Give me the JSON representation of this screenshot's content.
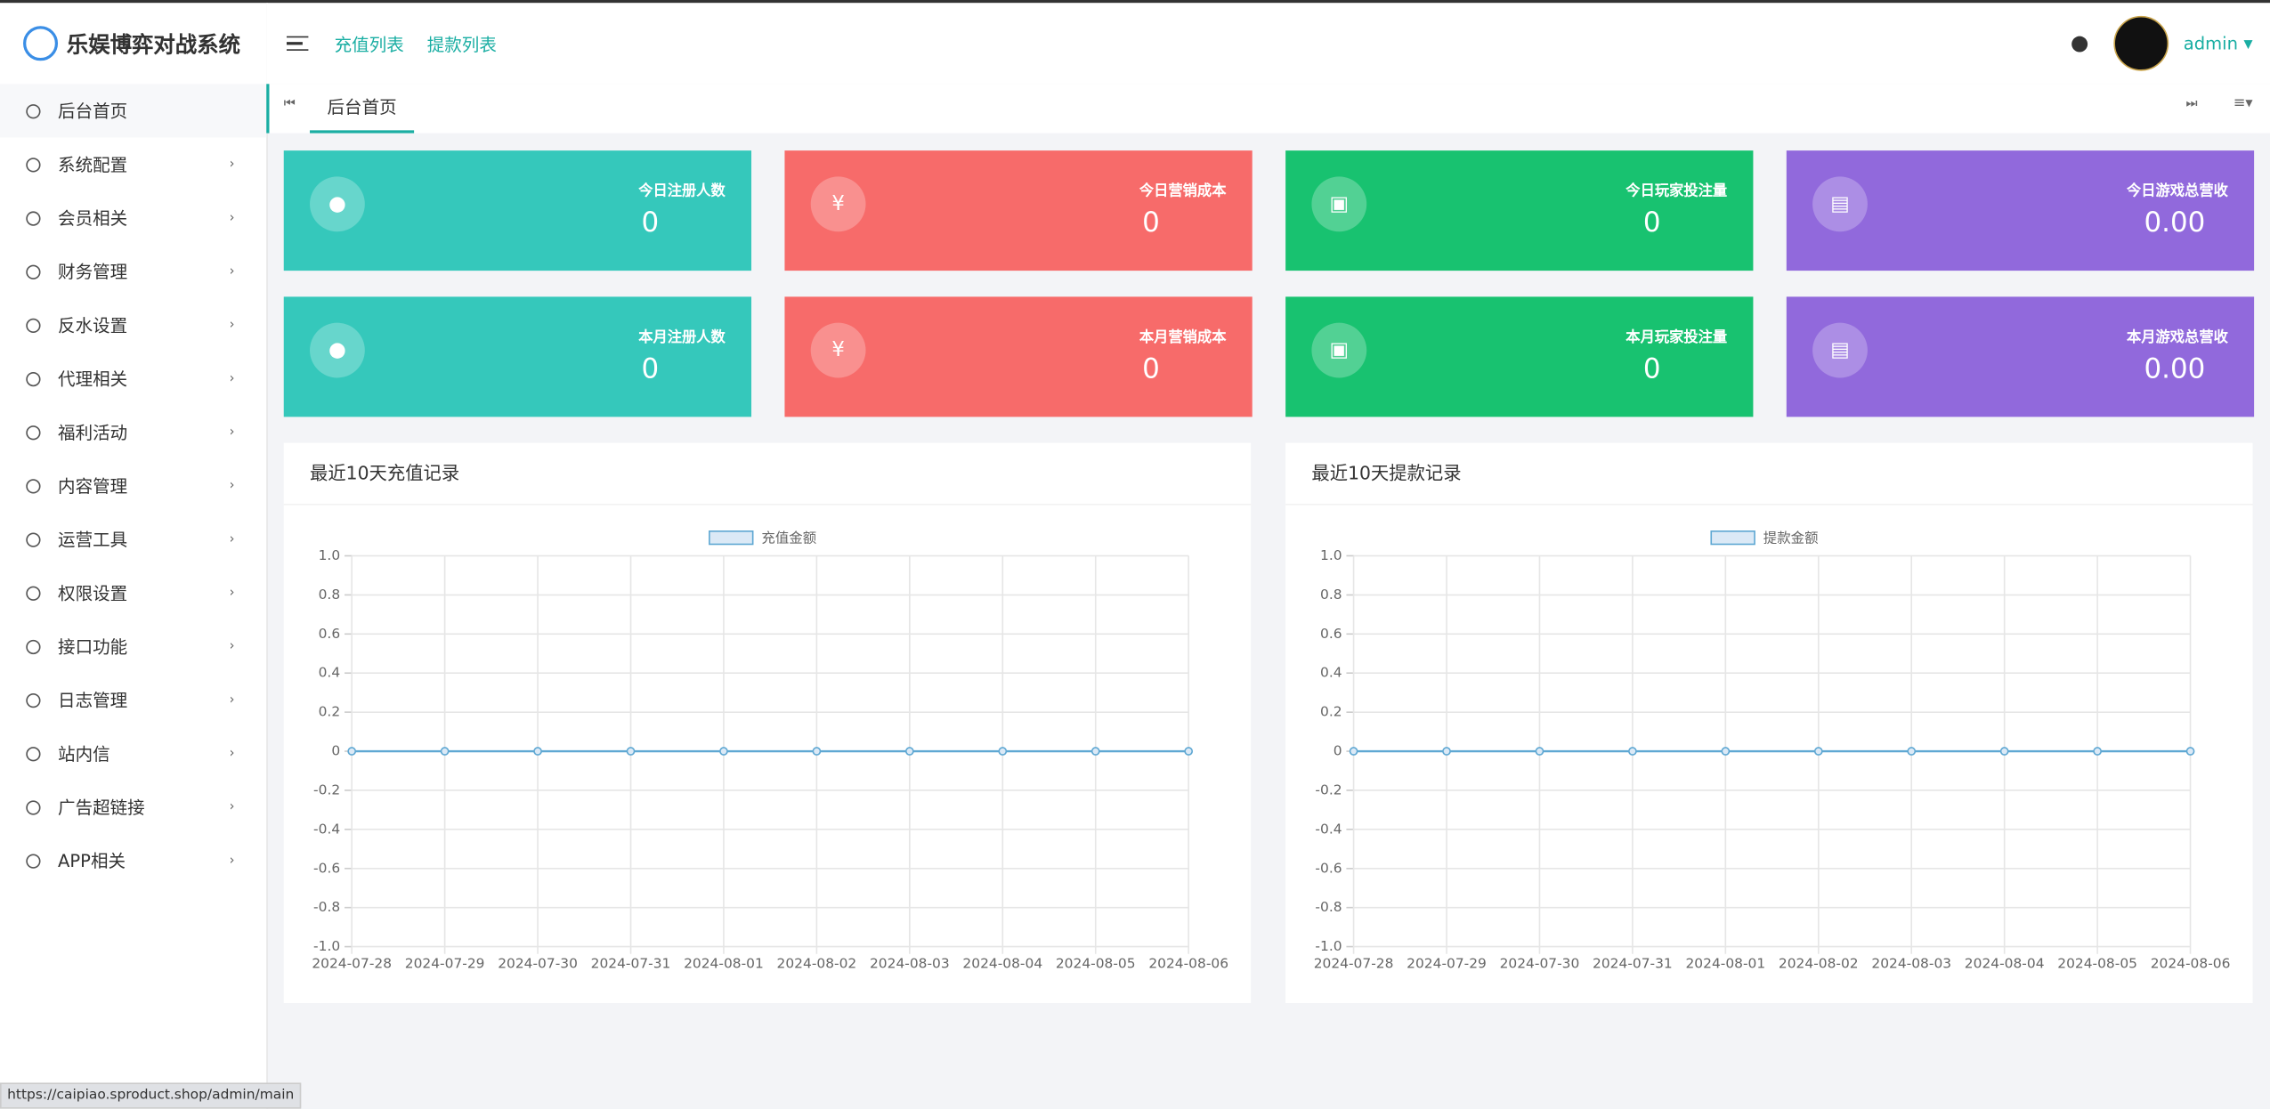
{
  "header": {
    "brand": "乐娱博弈对战系统",
    "nav": [
      "充值列表",
      "提款列表"
    ],
    "user": "admin"
  },
  "sidebar": {
    "menu": [
      "后台首页",
      "系统配置",
      "会员相关",
      "财务管理",
      "反水设置",
      "代理相关",
      "福利活动",
      "内容管理",
      "运营工具",
      "权限设置",
      "接口功能",
      "日志管理",
      "站内信",
      "广告超链接",
      "APP相关"
    ]
  },
  "tabs": [
    "后台首页"
  ],
  "stats": [
    {
      "label": "今日注册人数",
      "value": 0,
      "color": "#35c8bb",
      "icon": "user"
    },
    {
      "label": "今日营销成本",
      "value": 0,
      "color": "#f76b6a",
      "icon": "yen"
    },
    {
      "label": "今日玩家投注量",
      "value": 0,
      "color": "#18c270",
      "icon": "cards"
    },
    {
      "label": "今日游戏总营收",
      "value": "0.00",
      "color": "#9169dc",
      "icon": "money"
    },
    {
      "label": "本月注册人数",
      "value": 0,
      "color": "#35c8bb",
      "icon": "user"
    },
    {
      "label": "本月营销成本",
      "value": 0,
      "color": "#f76b6a",
      "icon": "yen"
    },
    {
      "label": "本月玩家投注量",
      "value": 0,
      "color": "#18c270",
      "icon": "cards"
    },
    {
      "label": "本月游戏总营收",
      "value": "0.00",
      "color": "#9169dc",
      "icon": "money"
    }
  ],
  "chart_data": [
    {
      "type": "line",
      "title": "最近10天充值记录",
      "categories": [
        "2024-07-28",
        "2024-07-29",
        "2024-07-30",
        "2024-07-31",
        "2024-08-01",
        "2024-08-02",
        "2024-08-03",
        "2024-08-04",
        "2024-08-05",
        "2024-08-06"
      ],
      "series": [
        {
          "name": "充值金额",
          "color": "#5fa8d3",
          "values": [
            0,
            0,
            0,
            0,
            0,
            0,
            0,
            0,
            0,
            0
          ]
        }
      ],
      "ylim": [
        -1,
        1
      ],
      "yticks": [
        {
          "value": 1,
          "label": "1.0"
        },
        0.8,
        0.6,
        0.4,
        0.2,
        0,
        -0.2,
        -0.4,
        -0.6,
        -0.8,
        {
          "value": -1,
          "label": "-1.0"
        }
      ],
      "grid": true,
      "legend": "top"
    },
    {
      "type": "line",
      "title": "最近10天提款记录",
      "categories": [
        "2024-07-28",
        "2024-07-29",
        "2024-07-30",
        "2024-07-31",
        "2024-08-01",
        "2024-08-02",
        "2024-08-03",
        "2024-08-04",
        "2024-08-05",
        "2024-08-06"
      ],
      "series": [
        {
          "name": "提款金额",
          "color": "#5fa8d3",
          "values": [
            0,
            0,
            0,
            0,
            0,
            0,
            0,
            0,
            0,
            0
          ]
        }
      ],
      "ylim": [
        -1,
        1
      ],
      "yticks": [
        {
          "value": 1,
          "label": "1.0"
        },
        0.8,
        0.6,
        0.4,
        0.2,
        0,
        -0.2,
        -0.4,
        -0.6,
        -0.8,
        {
          "value": -1,
          "label": "-1.0"
        }
      ],
      "grid": true,
      "legend": "top"
    }
  ],
  "status_url": "https://caipiao.sproduct.shop/admin/main"
}
